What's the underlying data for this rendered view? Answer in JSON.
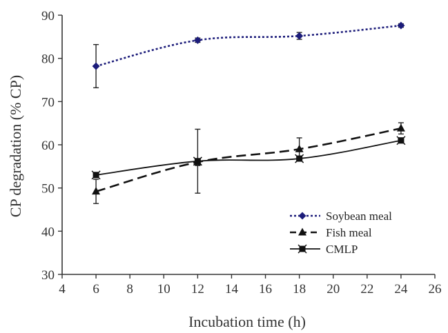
{
  "chart_data": {
    "type": "line",
    "title": "",
    "xlabel": "Incubation time (h)",
    "ylabel": "CP degradation (% CP)",
    "xlim": [
      4,
      26
    ],
    "ylim": [
      30,
      90
    ],
    "xticks": [
      4,
      6,
      8,
      10,
      12,
      14,
      16,
      18,
      20,
      22,
      24,
      26
    ],
    "yticks": [
      30,
      40,
      50,
      60,
      70,
      80,
      90
    ],
    "grid": false,
    "legend_position": "bottom-right",
    "x": [
      6,
      12,
      18,
      24
    ],
    "series": [
      {
        "name": "Soybean meal",
        "values": [
          78.2,
          84.2,
          85.2,
          87.6
        ],
        "errors": [
          5.0,
          0.5,
          0.8,
          0.4
        ],
        "line_style": "dotted",
        "marker": "diamond",
        "color": "#1c1c7a"
      },
      {
        "name": "Fish meal",
        "values": [
          49.2,
          56.0,
          59.0,
          63.8
        ],
        "errors": [
          2.8,
          0.8,
          2.6,
          1.3
        ],
        "line_style": "dashed",
        "marker": "triangle",
        "color": "#111111"
      },
      {
        "name": "CMLP",
        "values": [
          53.0,
          56.2,
          56.8,
          61.0
        ],
        "errors": [
          0.6,
          7.4,
          0.6,
          0.6
        ],
        "line_style": "solid",
        "marker": "square",
        "color": "#111111"
      }
    ]
  }
}
